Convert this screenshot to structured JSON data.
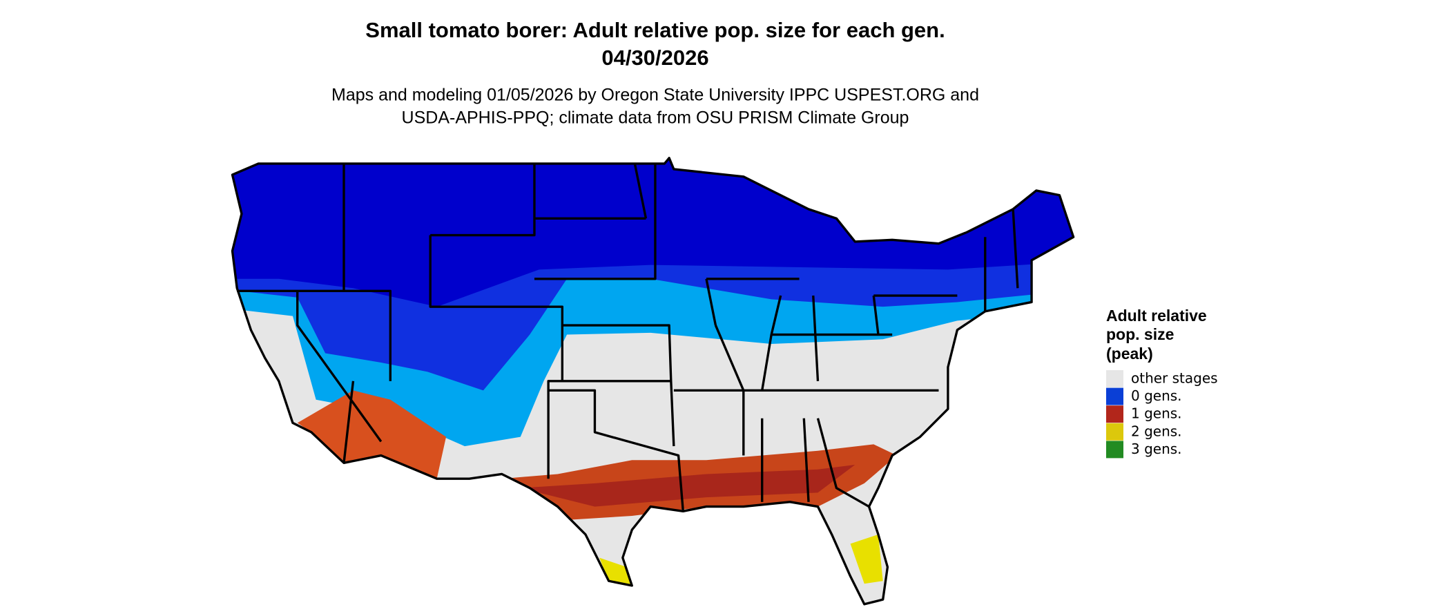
{
  "title": "Small tomato borer: Adult relative pop. size for each gen.",
  "date": "04/30/2026",
  "subtitle": [
    "Maps and modeling 01/05/2026 by Oregon State University IPPC USPEST.ORG and",
    "USDA-APHIS-PPQ; climate data from OSU PRISM Climate Group"
  ],
  "legend": {
    "title": [
      "Adult relative",
      "pop. size",
      "(peak)"
    ],
    "items": [
      {
        "label": "other stages",
        "color": "#e6e6e6"
      },
      {
        "label": "0 gens.",
        "color": "#0a3fd6"
      },
      {
        "label": "1 gens.",
        "color": "#b2261b"
      },
      {
        "label": "2 gens.",
        "color": "#dcc80c"
      },
      {
        "label": "3 gens.",
        "color": "#228b22"
      }
    ]
  }
}
